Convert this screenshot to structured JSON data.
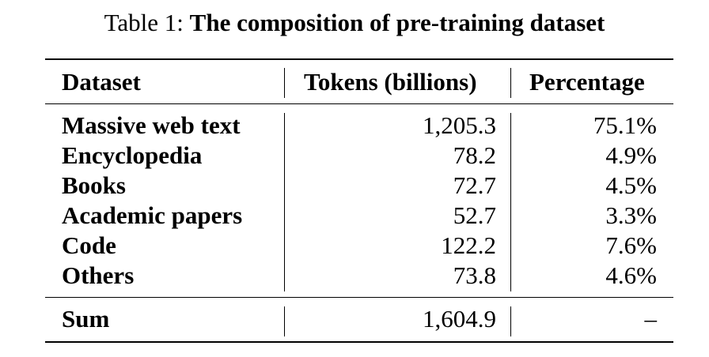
{
  "caption": {
    "label": "Table 1:",
    "title": "The composition of pre-training dataset"
  },
  "table": {
    "headers": [
      "Dataset",
      "Tokens (billions)",
      "Percentage"
    ],
    "rows": [
      {
        "dataset": "Massive web text",
        "tokens": "1,205.3",
        "percentage": "75.1%"
      },
      {
        "dataset": "Encyclopedia",
        "tokens": "78.2",
        "percentage": "4.9%"
      },
      {
        "dataset": "Books",
        "tokens": "72.7",
        "percentage": "4.5%"
      },
      {
        "dataset": "Academic papers",
        "tokens": "52.7",
        "percentage": "3.3%"
      },
      {
        "dataset": "Code",
        "tokens": "122.2",
        "percentage": "7.6%"
      },
      {
        "dataset": "Others",
        "tokens": "73.8",
        "percentage": "4.6%"
      }
    ],
    "sum": {
      "dataset": "Sum",
      "tokens": "1,604.9",
      "percentage": "–"
    }
  }
}
